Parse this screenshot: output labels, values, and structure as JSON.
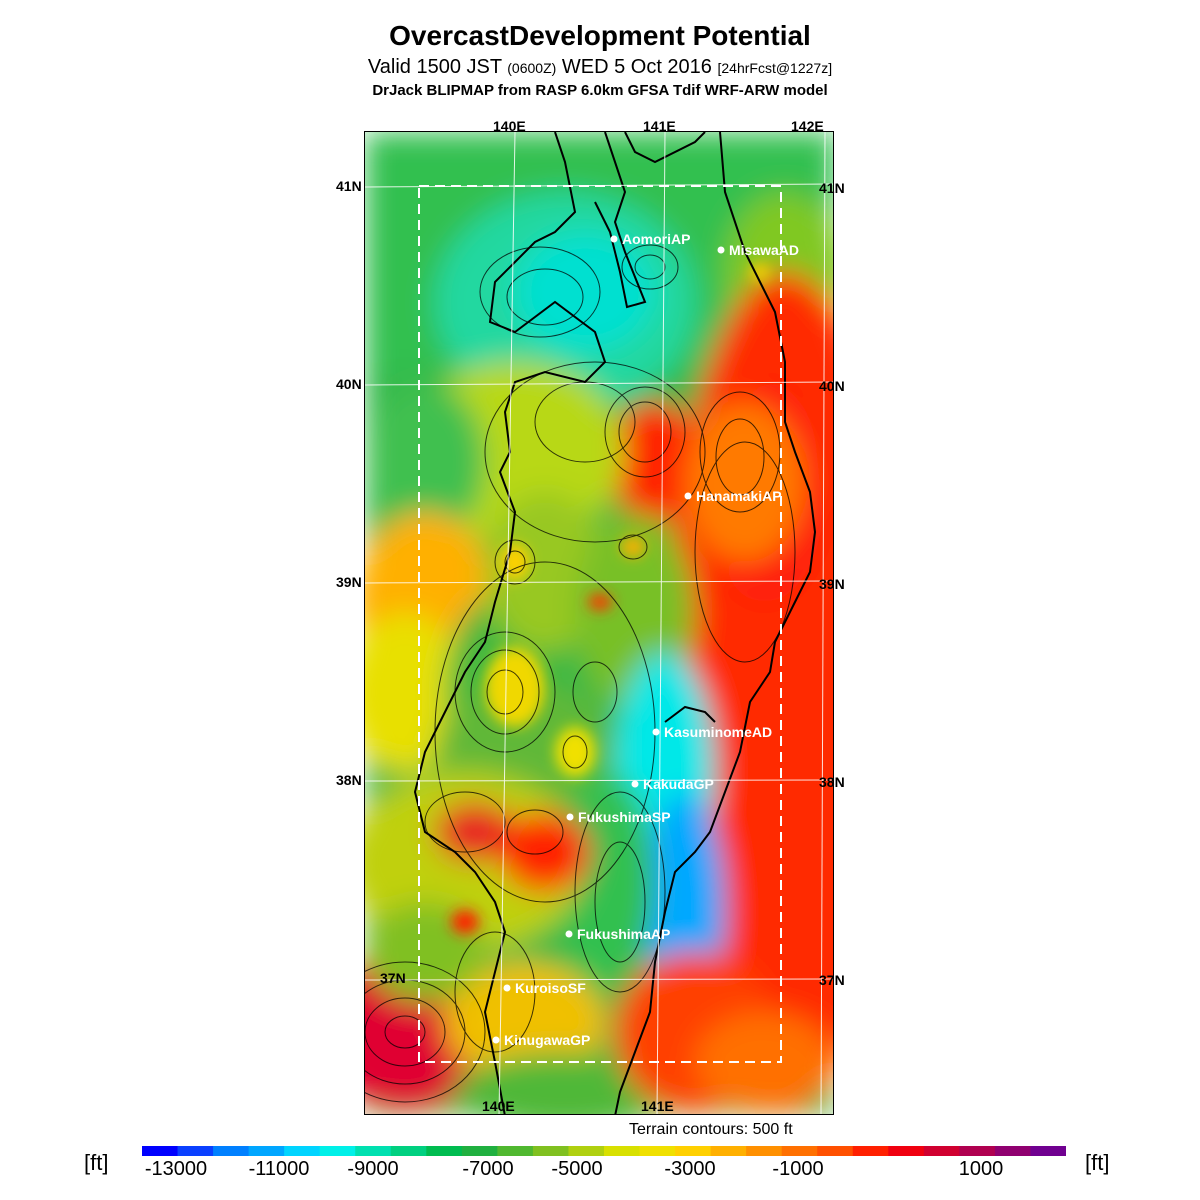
{
  "header": {
    "title": "OvercastDevelopment Potential",
    "valid_prefix": "Valid 1500 JST",
    "valid_utc": "(0600Z)",
    "valid_date": "WED 5 Oct 2016",
    "forecast": "[24hrFcst@1227z]",
    "model": "DrJack BLIPMAP from RASP 6.0km GFSA Tdif WRF-ARW model"
  },
  "map": {
    "lon_labels": [
      "140E",
      "141E",
      "142E"
    ],
    "lat_labels": [
      "41N",
      "40N",
      "39N",
      "38N",
      "37N"
    ],
    "stations": [
      {
        "name": "AomoriAP"
      },
      {
        "name": "MisawaAD"
      },
      {
        "name": "HanamakiAP"
      },
      {
        "name": "KasuminomeAD"
      },
      {
        "name": "KakudaGP"
      },
      {
        "name": "FukushimaSP"
      },
      {
        "name": "FukushimaAP"
      },
      {
        "name": "KuroisoSF"
      },
      {
        "name": "KinugawaGP"
      }
    ],
    "terrain_note": "Terrain contours: 500 ft"
  },
  "colorbar": {
    "unit": "[ft]",
    "tick_labels": [
      "-13000",
      "-11000",
      "-9000",
      "-7000",
      "-5000",
      "-3000",
      "-1000",
      "1000"
    ],
    "colors": [
      "#0000ff",
      "#0a40ff",
      "#0080ff",
      "#00a6ff",
      "#00d4ff",
      "#00f0e8",
      "#00e0b0",
      "#00d080",
      "#00bc50",
      "#20b040",
      "#50b830",
      "#80c020",
      "#b0d010",
      "#d8e000",
      "#f0e000",
      "#ffd000",
      "#ffb000",
      "#ff9000",
      "#ff7000",
      "#ff5000",
      "#ff2000",
      "#f00010",
      "#d00030",
      "#b00050",
      "#900070",
      "#700090"
    ]
  }
}
